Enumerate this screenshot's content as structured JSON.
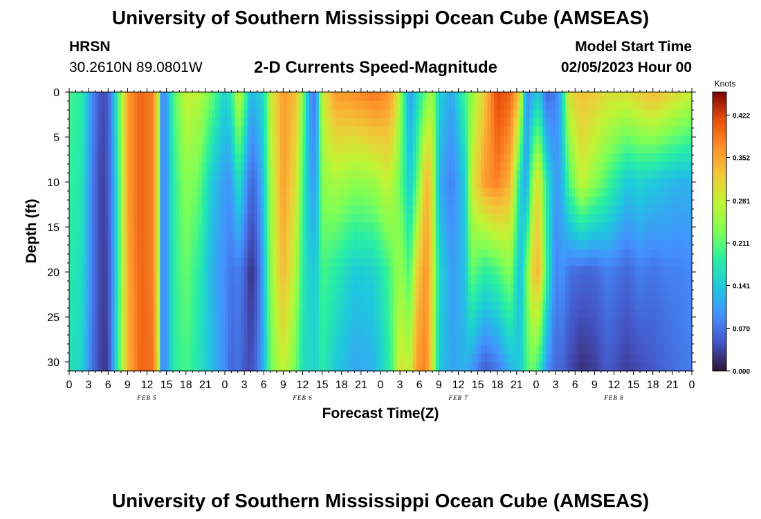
{
  "header": {
    "title": "University of Southern Mississippi Ocean Cube (AMSEAS)",
    "station_name": "HRSN",
    "station_coords": "30.2610N  89.0801W",
    "subtitle": "2-D Currents Speed-Magnitude",
    "model_start_label": "Model Start Time",
    "model_start_value": "02/05/2023 Hour 00"
  },
  "footer": {
    "title": "University of Southern Mississippi Ocean Cube (AMSEAS)"
  },
  "chart_data": {
    "type": "heatmap",
    "title": "2-D Currents Speed-Magnitude",
    "xlabel": "Forecast Time(Z)",
    "ylabel": "Depth (ft)",
    "x_range_hours": [
      0,
      96
    ],
    "y_range_ft": [
      0,
      31
    ],
    "x_ticks": [
      "0",
      "3",
      "6",
      "9",
      "12",
      "15",
      "18",
      "21",
      "0",
      "3",
      "6",
      "9",
      "12",
      "15",
      "18",
      "21",
      "0",
      "3",
      "6",
      "9",
      "12",
      "15",
      "18",
      "21",
      "0",
      "3",
      "6",
      "9",
      "12",
      "15",
      "18",
      "21",
      "0"
    ],
    "y_ticks": [
      "0",
      "5",
      "10",
      "15",
      "20",
      "25",
      "30"
    ],
    "y_tick_values": [
      0,
      5,
      10,
      15,
      20,
      25,
      30
    ],
    "date_labels": [
      {
        "label": "FEB 5",
        "hour": 12
      },
      {
        "label": "FEB 6",
        "hour": 36
      },
      {
        "label": "FEB 7",
        "hour": 60
      },
      {
        "label": "FEB 8",
        "hour": 84
      }
    ],
    "colorbar": {
      "units": "Knots",
      "min": 0.0,
      "max": 0.46,
      "tick_values": [
        0.0,
        0.07,
        0.141,
        0.211,
        0.281,
        0.352,
        0.422
      ],
      "tick_labels": [
        "0.000",
        "0.070",
        "0.141",
        "0.211",
        "0.281",
        "0.352",
        "0.422"
      ]
    },
    "depth_levels_ft": [
      0,
      10,
      20,
      31
    ],
    "speed_columns": [
      {
        "hour": 0,
        "speeds": [
          0.2,
          0.19,
          0.18,
          0.17
        ]
      },
      {
        "hour": 2,
        "speeds": [
          0.18,
          0.17,
          0.16,
          0.15
        ]
      },
      {
        "hour": 3.5,
        "speeds": [
          0.09,
          0.08,
          0.08,
          0.07
        ]
      },
      {
        "hour": 5,
        "speeds": [
          0.04,
          0.03,
          0.03,
          0.03
        ]
      },
      {
        "hour": 6,
        "speeds": [
          0.05,
          0.05,
          0.04,
          0.03
        ]
      },
      {
        "hour": 7,
        "speeds": [
          0.14,
          0.12,
          0.12,
          0.13
        ]
      },
      {
        "hour": 8,
        "speeds": [
          0.25,
          0.24,
          0.24,
          0.24
        ]
      },
      {
        "hour": 9,
        "speeds": [
          0.36,
          0.36,
          0.35,
          0.34
        ]
      },
      {
        "hour": 11,
        "speeds": [
          0.4,
          0.4,
          0.4,
          0.4
        ]
      },
      {
        "hour": 13,
        "speeds": [
          0.38,
          0.38,
          0.38,
          0.39
        ]
      },
      {
        "hour": 13.8,
        "speeds": [
          0.26,
          0.26,
          0.26,
          0.27
        ]
      },
      {
        "hour": 14.3,
        "speeds": [
          0.08,
          0.08,
          0.08,
          0.08
        ]
      },
      {
        "hour": 15,
        "speeds": [
          0.1,
          0.1,
          0.1,
          0.1
        ]
      },
      {
        "hour": 16,
        "speeds": [
          0.2,
          0.18,
          0.18,
          0.18
        ]
      },
      {
        "hour": 18,
        "speeds": [
          0.28,
          0.24,
          0.22,
          0.2
        ]
      },
      {
        "hour": 20,
        "speeds": [
          0.27,
          0.22,
          0.18,
          0.17
        ]
      },
      {
        "hour": 22,
        "speeds": [
          0.22,
          0.14,
          0.12,
          0.13
        ]
      },
      {
        "hour": 24,
        "speeds": [
          0.15,
          0.1,
          0.09,
          0.09
        ]
      },
      {
        "hour": 25,
        "speeds": [
          0.18,
          0.1,
          0.07,
          0.06
        ]
      },
      {
        "hour": 26,
        "speeds": [
          0.28,
          0.17,
          0.08,
          0.07
        ]
      },
      {
        "hour": 27,
        "speeds": [
          0.22,
          0.12,
          0.06,
          0.05
        ]
      },
      {
        "hour": 28,
        "speeds": [
          0.12,
          0.06,
          0.02,
          0.04
        ]
      },
      {
        "hour": 29,
        "speeds": [
          0.14,
          0.08,
          0.05,
          0.07
        ]
      },
      {
        "hour": 30,
        "speeds": [
          0.16,
          0.14,
          0.12,
          0.12
        ]
      },
      {
        "hour": 31,
        "speeds": [
          0.28,
          0.25,
          0.24,
          0.22
        ]
      },
      {
        "hour": 33,
        "speeds": [
          0.36,
          0.36,
          0.34,
          0.28
        ]
      },
      {
        "hour": 35,
        "speeds": [
          0.33,
          0.3,
          0.26,
          0.22
        ]
      },
      {
        "hour": 36,
        "speeds": [
          0.24,
          0.2,
          0.18,
          0.16
        ]
      },
      {
        "hour": 37,
        "speeds": [
          0.1,
          0.12,
          0.15,
          0.16
        ]
      },
      {
        "hour": 38,
        "speeds": [
          0.07,
          0.1,
          0.14,
          0.15
        ]
      },
      {
        "hour": 39,
        "speeds": [
          0.28,
          0.24,
          0.2,
          0.18
        ]
      },
      {
        "hour": 41,
        "speeds": [
          0.36,
          0.26,
          0.18,
          0.14
        ]
      },
      {
        "hour": 44,
        "speeds": [
          0.37,
          0.24,
          0.14,
          0.11
        ]
      },
      {
        "hour": 47,
        "speeds": [
          0.39,
          0.25,
          0.15,
          0.12
        ]
      },
      {
        "hour": 49,
        "speeds": [
          0.37,
          0.28,
          0.19,
          0.17
        ]
      },
      {
        "hour": 50,
        "speeds": [
          0.34,
          0.26,
          0.22,
          0.21
        ]
      },
      {
        "hour": 51,
        "speeds": [
          0.26,
          0.22,
          0.25,
          0.3
        ]
      },
      {
        "hour": 52.5,
        "speeds": [
          0.1,
          0.14,
          0.2,
          0.27
        ]
      },
      {
        "hour": 53.5,
        "speeds": [
          0.15,
          0.2,
          0.31,
          0.36
        ]
      },
      {
        "hour": 55,
        "speeds": [
          0.22,
          0.34,
          0.37,
          0.38
        ]
      },
      {
        "hour": 56,
        "speeds": [
          0.26,
          0.3,
          0.3,
          0.3
        ]
      },
      {
        "hour": 57,
        "speeds": [
          0.15,
          0.12,
          0.16,
          0.14
        ]
      },
      {
        "hour": 59,
        "speeds": [
          0.11,
          0.08,
          0.1,
          0.11
        ]
      },
      {
        "hour": 61,
        "speeds": [
          0.2,
          0.14,
          0.13,
          0.12
        ]
      },
      {
        "hour": 62,
        "speeds": [
          0.24,
          0.28,
          0.22,
          0.1
        ]
      },
      {
        "hour": 64,
        "speeds": [
          0.32,
          0.36,
          0.18,
          0.05
        ]
      },
      {
        "hour": 66,
        "speeds": [
          0.42,
          0.38,
          0.2,
          0.07
        ]
      },
      {
        "hour": 68,
        "speeds": [
          0.4,
          0.34,
          0.24,
          0.12
        ]
      },
      {
        "hour": 69.5,
        "speeds": [
          0.32,
          0.16,
          0.12,
          0.14
        ]
      },
      {
        "hour": 70.5,
        "speeds": [
          0.08,
          0.1,
          0.22,
          0.2
        ]
      },
      {
        "hour": 71.5,
        "speeds": [
          0.12,
          0.26,
          0.32,
          0.22
        ]
      },
      {
        "hour": 72.5,
        "speeds": [
          0.14,
          0.3,
          0.34,
          0.18
        ]
      },
      {
        "hour": 73.5,
        "speeds": [
          0.06,
          0.18,
          0.2,
          0.1
        ]
      },
      {
        "hour": 75,
        "speeds": [
          0.08,
          0.1,
          0.08,
          0.06
        ]
      },
      {
        "hour": 76,
        "speeds": [
          0.14,
          0.12,
          0.1,
          0.06
        ]
      },
      {
        "hour": 77,
        "speeds": [
          0.3,
          0.2,
          0.07,
          0.04
        ]
      },
      {
        "hour": 79,
        "speeds": [
          0.33,
          0.28,
          0.06,
          0.02
        ]
      },
      {
        "hour": 81,
        "speeds": [
          0.32,
          0.24,
          0.06,
          0.03
        ]
      },
      {
        "hour": 83,
        "speeds": [
          0.3,
          0.2,
          0.08,
          0.05
        ]
      },
      {
        "hour": 86,
        "speeds": [
          0.3,
          0.14,
          0.06,
          0.03
        ]
      },
      {
        "hour": 88,
        "speeds": [
          0.32,
          0.15,
          0.08,
          0.04
        ]
      },
      {
        "hour": 90,
        "speeds": [
          0.34,
          0.14,
          0.07,
          0.05
        ]
      },
      {
        "hour": 92,
        "speeds": [
          0.32,
          0.13,
          0.08,
          0.06
        ]
      },
      {
        "hour": 94,
        "speeds": [
          0.3,
          0.12,
          0.08,
          0.07
        ]
      },
      {
        "hour": 96,
        "speeds": [
          0.28,
          0.12,
          0.09,
          0.08
        ]
      }
    ]
  }
}
